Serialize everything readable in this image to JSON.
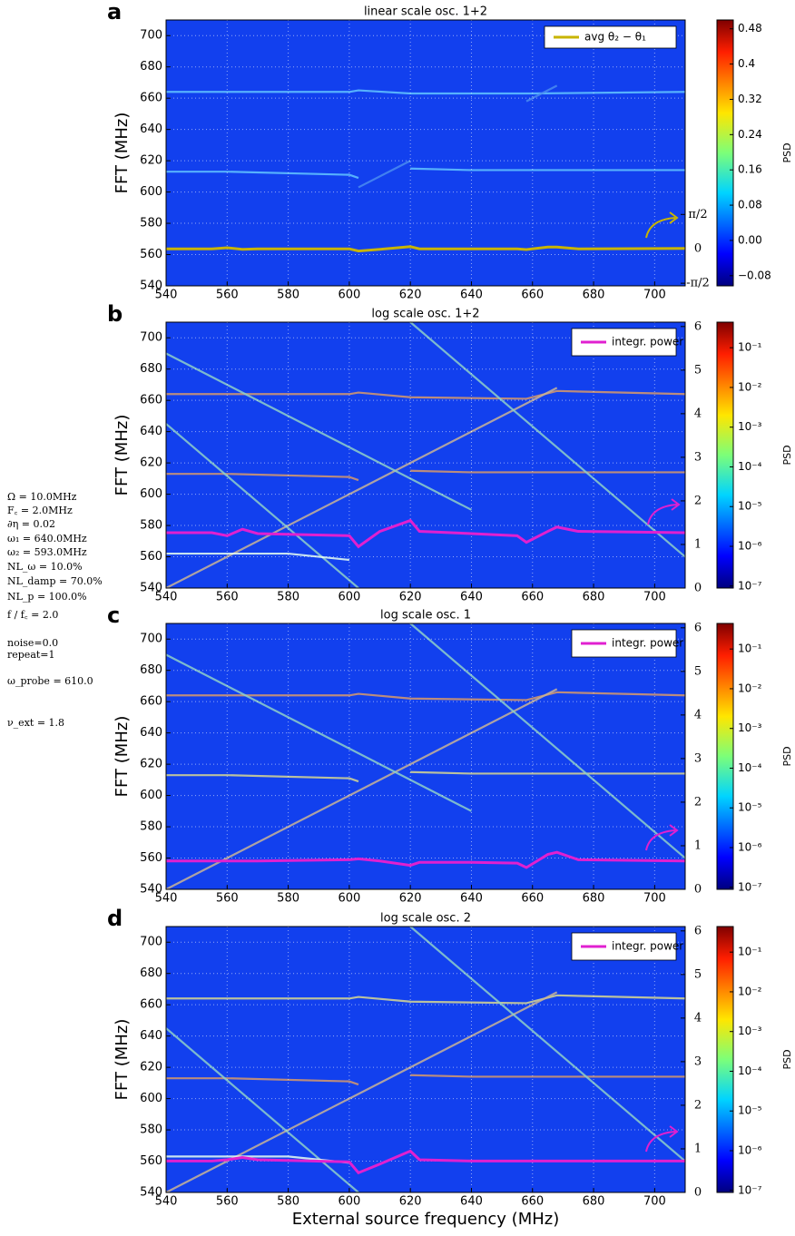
{
  "parameters": [
    "Ω = 10.0MHz",
    "F꜀ = 2.0MHz",
    "∂η = 0.02",
    "ω₁ = 640.0MHz",
    "ω₂ = 593.0MHz",
    "NL_ω = 10.0%",
    "NL_damp = 70.0%",
    "NL_p = 100.0%",
    "f / f꜀ = 2.0",
    "noise=0.0",
    "repeat=1",
    "ω_probe = 610.0",
    "ν_ext = 1.8"
  ],
  "chart_data": [
    {
      "type": "spectrogram",
      "panel_label": "a",
      "title": "linear scale osc. 1+2",
      "ylabel": "FFT (MHz)",
      "colorbar_label": "PSD",
      "xlim": [
        540,
        710
      ],
      "xticks": [
        540,
        560,
        580,
        600,
        620,
        640,
        660,
        680,
        700
      ],
      "ylim": [
        540,
        710
      ],
      "yticks": [
        540,
        560,
        580,
        600,
        620,
        640,
        660,
        680,
        700
      ],
      "y2lim": [
        -1.69,
        10.45
      ],
      "y2ticks": [
        {
          "value": -1.5708,
          "label": "-π/2"
        },
        0,
        {
          "value": 1.5708,
          "label": "π/2"
        }
      ],
      "clim": [
        -0.103,
        0.5
      ],
      "clog": false,
      "cticks": [
        {
          "value": -0.08,
          "label": "−0.08"
        },
        {
          "value": 0,
          "label": "0.00"
        },
        0.08,
        0.16,
        0.24,
        0.32,
        0.4,
        0.48
      ],
      "grid": true,
      "legend": "upper right",
      "traces": [
        {
          "color": "#63c6ff",
          "x": [
            540,
            600,
            603,
            620,
            660,
            710
          ],
          "y": [
            664,
            664,
            665,
            663,
            663,
            664
          ]
        },
        {
          "color": "#63c6ff",
          "x": [
            540,
            560,
            600,
            603
          ],
          "y": [
            613,
            613,
            611,
            609
          ]
        },
        {
          "color": "#63c6ff",
          "x": [
            620,
            640,
            710
          ],
          "y": [
            615,
            614,
            614
          ]
        },
        {
          "color": "#4a8cf0",
          "x": [
            603,
            620
          ],
          "y": [
            603,
            620
          ]
        },
        {
          "color": "#4a8cf0",
          "x": [
            658,
            668
          ],
          "y": [
            658,
            668
          ]
        }
      ],
      "series": [
        {
          "name": "avg θ₂ − θ₁",
          "color": "#c8b400",
          "axis": "y2",
          "x": [
            540,
            555,
            560,
            565,
            570,
            600,
            603,
            610,
            620,
            623,
            640,
            655,
            658,
            665,
            668,
            675,
            710
          ],
          "values": [
            0,
            0,
            0.05,
            -0.02,
            0,
            0,
            -0.1,
            -0.02,
            0.1,
            0,
            0,
            0,
            -0.03,
            0.08,
            0.08,
            0,
            0.02
          ]
        }
      ]
    },
    {
      "type": "spectrogram",
      "panel_label": "b",
      "title": "log scale osc. 1+2",
      "ylabel": "FFT (MHz)",
      "colorbar_label": "PSD",
      "xlim": [
        540,
        710
      ],
      "xticks": [
        540,
        560,
        580,
        600,
        620,
        640,
        660,
        680,
        700
      ],
      "ylim": [
        540,
        710
      ],
      "yticks": [
        540,
        560,
        580,
        600,
        620,
        640,
        660,
        680,
        700
      ],
      "y2lim": [
        0,
        6.1
      ],
      "y2ticks": [
        0,
        1,
        2,
        3,
        4,
        5,
        6
      ],
      "clim": [
        8.9e-08,
        0.44
      ],
      "clog": true,
      "cticks": [
        {
          "value": 1e-07,
          "label": "10⁻⁷"
        },
        {
          "value": 1e-06,
          "label": "10⁻⁶"
        },
        {
          "value": 1e-05,
          "label": "10⁻⁵"
        },
        {
          "value": 0.0001,
          "label": "10⁻⁴"
        },
        {
          "value": 0.001,
          "label": "10⁻³"
        },
        {
          "value": 0.01,
          "label": "10⁻²"
        },
        {
          "value": 0.1,
          "label": "10⁻¹"
        }
      ],
      "grid": true,
      "legend": "upper right",
      "traces": [
        {
          "color": "#d89a6a",
          "x": [
            540,
            600,
            603,
            620,
            658,
            668,
            710
          ],
          "y": [
            664,
            664,
            665,
            662,
            661,
            666,
            664
          ]
        },
        {
          "color": "#d89a6a",
          "x": [
            540,
            560,
            600,
            603
          ],
          "y": [
            613,
            613,
            611,
            609
          ]
        },
        {
          "color": "#d89a6a",
          "x": [
            620,
            640,
            710
          ],
          "y": [
            615,
            614,
            614
          ]
        },
        {
          "color": "#c9b497",
          "x": [
            540,
            668
          ],
          "y": [
            540,
            668
          ]
        },
        {
          "color": "#8fd0c8",
          "x": [
            540,
            603
          ],
          "y": [
            645,
            540
          ]
        },
        {
          "color": "#8fd0c8",
          "x": [
            620,
            710
          ],
          "y": [
            710,
            560
          ]
        },
        {
          "color": "#8fd0c8",
          "x": [
            540,
            640
          ],
          "y": [
            690,
            590
          ]
        },
        {
          "color": "#e8fff0",
          "x": [
            540,
            580,
            600
          ],
          "y": [
            562,
            562,
            558
          ]
        }
      ],
      "series": [
        {
          "name": "integr. power",
          "color": "#e020d0",
          "axis": "y2",
          "x": [
            540,
            555,
            560,
            565,
            570,
            600,
            603,
            610,
            620,
            623,
            640,
            655,
            658,
            665,
            668,
            675,
            710
          ],
          "values": [
            1.27,
            1.27,
            1.2,
            1.35,
            1.25,
            1.2,
            0.95,
            1.3,
            1.55,
            1.3,
            1.25,
            1.2,
            1.05,
            1.3,
            1.4,
            1.3,
            1.27
          ]
        }
      ]
    },
    {
      "type": "spectrogram",
      "panel_label": "c",
      "title": "log scale osc. 1",
      "ylabel": "FFT (MHz)",
      "colorbar_label": "PSD",
      "xlim": [
        540,
        710
      ],
      "xticks": [
        540,
        560,
        580,
        600,
        620,
        640,
        660,
        680,
        700
      ],
      "ylim": [
        540,
        710
      ],
      "yticks": [
        540,
        560,
        580,
        600,
        620,
        640,
        660,
        680,
        700
      ],
      "y2lim": [
        0,
        6.1
      ],
      "y2ticks": [
        0,
        1,
        2,
        3,
        4,
        5,
        6
      ],
      "clim": [
        8.9e-08,
        0.44
      ],
      "clog": true,
      "cticks": [
        {
          "value": 1e-07,
          "label": "10⁻⁷"
        },
        {
          "value": 1e-06,
          "label": "10⁻⁶"
        },
        {
          "value": 1e-05,
          "label": "10⁻⁵"
        },
        {
          "value": 0.0001,
          "label": "10⁻⁴"
        },
        {
          "value": 0.001,
          "label": "10⁻³"
        },
        {
          "value": 0.01,
          "label": "10⁻²"
        },
        {
          "value": 0.1,
          "label": "10⁻¹"
        }
      ],
      "grid": true,
      "legend": "upper right",
      "traces": [
        {
          "color": "#d89a6a",
          "x": [
            540,
            600,
            603,
            620,
            658,
            668,
            710
          ],
          "y": [
            664,
            664,
            665,
            662,
            661,
            666,
            664
          ]
        },
        {
          "color": "#d8d890",
          "x": [
            540,
            560,
            600,
            603
          ],
          "y": [
            613,
            613,
            611,
            609
          ]
        },
        {
          "color": "#d8d890",
          "x": [
            620,
            640,
            710
          ],
          "y": [
            615,
            614,
            614
          ]
        },
        {
          "color": "#c9b497",
          "x": [
            540,
            668
          ],
          "y": [
            540,
            668
          ]
        },
        {
          "color": "#8fd0c8",
          "x": [
            620,
            710
          ],
          "y": [
            710,
            560
          ]
        },
        {
          "color": "#8fd0c8",
          "x": [
            540,
            640
          ],
          "y": [
            690,
            590
          ]
        }
      ],
      "series": [
        {
          "name": "integr. power",
          "color": "#e020d0",
          "axis": "y2",
          "x": [
            540,
            555,
            560,
            565,
            570,
            600,
            603,
            610,
            620,
            623,
            640,
            655,
            658,
            665,
            668,
            675,
            710
          ],
          "values": [
            0.65,
            0.65,
            0.65,
            0.65,
            0.65,
            0.68,
            0.7,
            0.65,
            0.55,
            0.62,
            0.62,
            0.6,
            0.5,
            0.8,
            0.85,
            0.68,
            0.65
          ]
        }
      ]
    },
    {
      "type": "spectrogram",
      "panel_label": "d",
      "title": "log scale osc. 2",
      "ylabel": "FFT (MHz)",
      "xlabel": "External source frequency (MHz)",
      "colorbar_label": "PSD",
      "xlim": [
        540,
        710
      ],
      "xticks": [
        540,
        560,
        580,
        600,
        620,
        640,
        660,
        680,
        700
      ],
      "ylim": [
        540,
        710
      ],
      "yticks": [
        540,
        560,
        580,
        600,
        620,
        640,
        660,
        680,
        700
      ],
      "y2lim": [
        0,
        6.1
      ],
      "y2ticks": [
        0,
        1,
        2,
        3,
        4,
        5,
        6
      ],
      "clim": [
        8.9e-08,
        0.44
      ],
      "clog": true,
      "cticks": [
        {
          "value": 1e-07,
          "label": "10⁻⁷"
        },
        {
          "value": 1e-06,
          "label": "10⁻⁶"
        },
        {
          "value": 1e-05,
          "label": "10⁻⁵"
        },
        {
          "value": 0.0001,
          "label": "10⁻⁴"
        },
        {
          "value": 0.001,
          "label": "10⁻³"
        },
        {
          "value": 0.01,
          "label": "10⁻²"
        },
        {
          "value": 0.1,
          "label": "10⁻¹"
        }
      ],
      "grid": true,
      "legend": "upper right",
      "traces": [
        {
          "color": "#d8d890",
          "x": [
            540,
            600,
            603,
            620,
            658,
            668,
            710
          ],
          "y": [
            664,
            664,
            665,
            662,
            661,
            666,
            664
          ]
        },
        {
          "color": "#d89a6a",
          "x": [
            540,
            560,
            600,
            603
          ],
          "y": [
            613,
            613,
            611,
            609
          ]
        },
        {
          "color": "#d89a6a",
          "x": [
            620,
            640,
            710
          ],
          "y": [
            615,
            614,
            614
          ]
        },
        {
          "color": "#c9b497",
          "x": [
            540,
            668
          ],
          "y": [
            540,
            668
          ]
        },
        {
          "color": "#8fd0c8",
          "x": [
            540,
            603
          ],
          "y": [
            645,
            540
          ]
        },
        {
          "color": "#8fd0c8",
          "x": [
            620,
            710
          ],
          "y": [
            710,
            560
          ]
        },
        {
          "color": "#e8fff0",
          "x": [
            540,
            580,
            600
          ],
          "y": [
            563,
            563,
            559
          ]
        }
      ],
      "series": [
        {
          "name": "integr. power",
          "color": "#e020d0",
          "axis": "y2",
          "x": [
            540,
            555,
            560,
            565,
            570,
            600,
            603,
            610,
            620,
            623,
            640,
            655,
            658,
            665,
            668,
            675,
            710
          ],
          "values": [
            0.72,
            0.72,
            0.75,
            0.8,
            0.75,
            0.7,
            0.45,
            0.65,
            0.95,
            0.75,
            0.72,
            0.72,
            0.72,
            0.72,
            0.72,
            0.72,
            0.72
          ]
        }
      ]
    }
  ]
}
